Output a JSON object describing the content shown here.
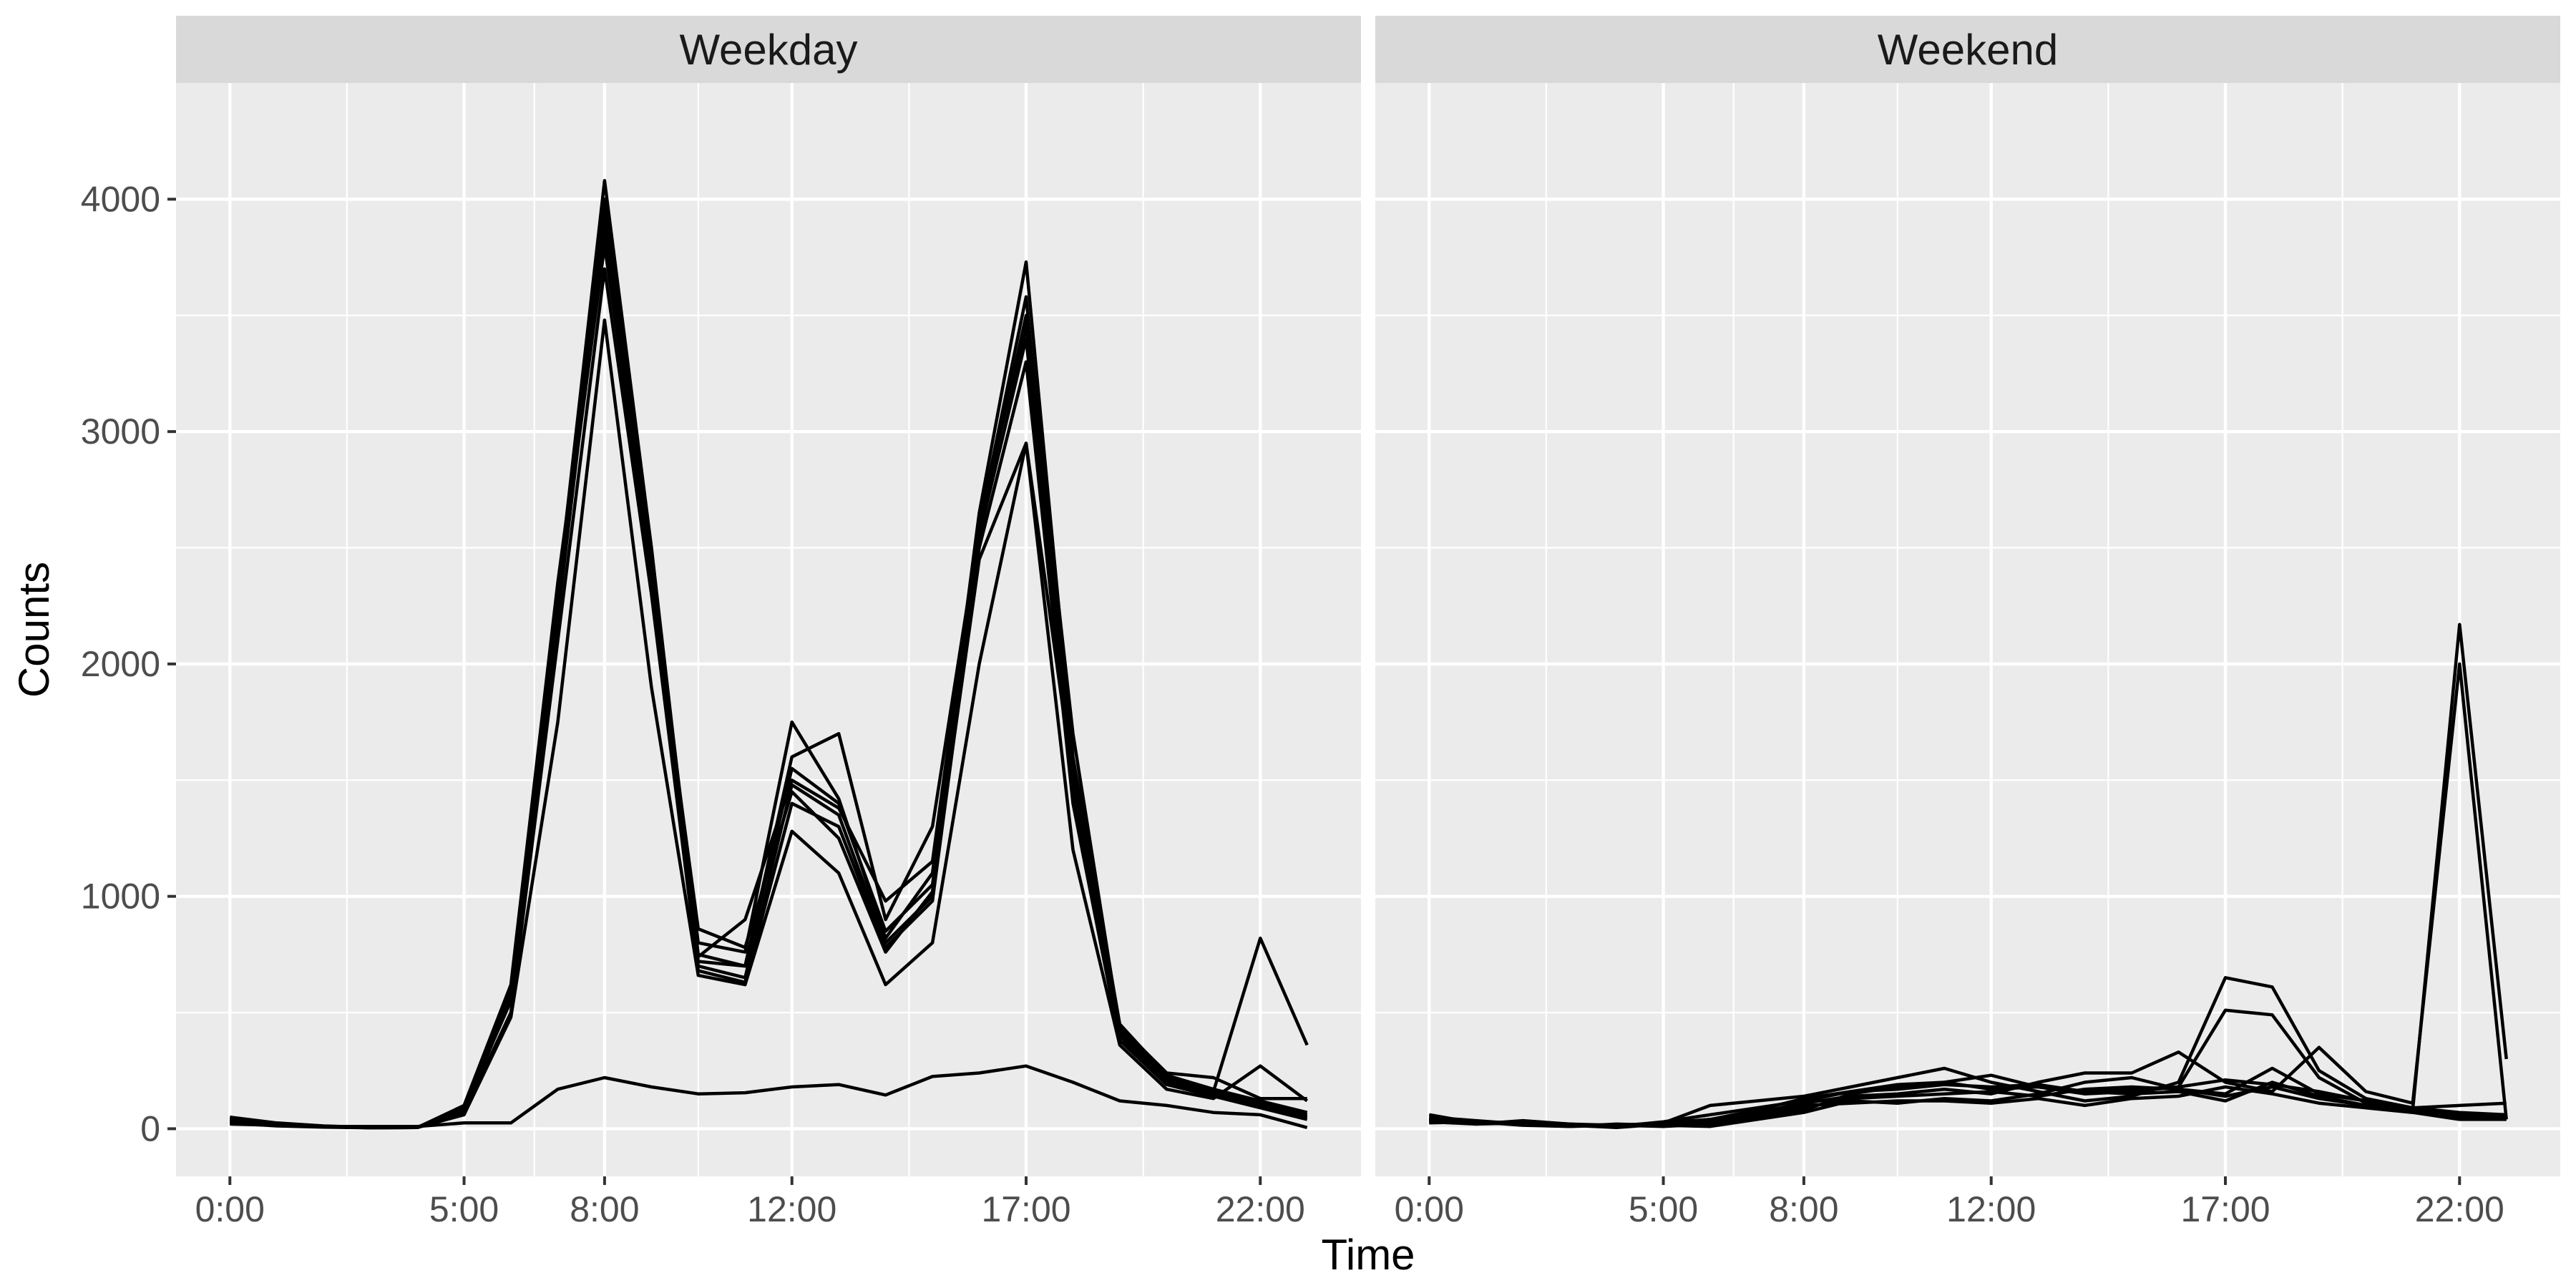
{
  "chart_data": {
    "type": "line",
    "xlabel": "Time",
    "ylabel": "Counts",
    "xlim": [
      -1.15,
      24.15
    ],
    "ylim": [
      -205,
      4500
    ],
    "x_ticks": [
      0,
      5,
      8,
      12,
      17,
      22
    ],
    "x_tick_labels": [
      "0:00",
      "5:00",
      "8:00",
      "12:00",
      "17:00",
      "22:00"
    ],
    "y_ticks": [
      0,
      1000,
      2000,
      3000,
      4000
    ],
    "y_tick_labels": [
      "0",
      "1000",
      "2000",
      "3000",
      "4000"
    ],
    "grid": true,
    "line_color": "#000000",
    "panel_background": "#ebebeb",
    "strip_background": "#d9d9d9",
    "panels": [
      {
        "label": "Weekday",
        "series": [
          {
            "x": [
              0,
              1,
              2,
              3,
              4,
              5,
              6,
              7,
              8,
              9,
              10,
              11,
              12,
              13,
              14,
              15,
              16,
              17,
              18,
              19,
              20,
              21,
              22,
              23
            ],
            "y": [
              40,
              20,
              10,
              5,
              5,
              80,
              600,
              2300,
              4080,
              2500,
              700,
              650,
              1480,
              1350,
              800,
              1000,
              2600,
              3580,
              1500,
              400,
              200,
              150,
              100,
              50
            ]
          },
          {
            "x": [
              0,
              1,
              2,
              3,
              4,
              5,
              6,
              7,
              8,
              9,
              10,
              11,
              12,
              13,
              14,
              15,
              16,
              17,
              18,
              19,
              20,
              21,
              22,
              23
            ],
            "y": [
              30,
              15,
              8,
              4,
              5,
              90,
              550,
              2200,
              3900,
              2400,
              720,
              700,
              1550,
              1400,
              850,
              1050,
              2550,
              3400,
              1450,
              420,
              210,
              160,
              110,
              60
            ]
          },
          {
            "x": [
              0,
              1,
              2,
              3,
              4,
              5,
              6,
              7,
              8,
              9,
              10,
              11,
              12,
              13,
              14,
              15,
              16,
              17,
              18,
              19,
              20,
              21,
              22,
              23
            ],
            "y": [
              50,
              25,
              12,
              6,
              5,
              70,
              500,
              2100,
              3700,
              2300,
              680,
              630,
              1400,
              1300,
              780,
              980,
              2500,
              3300,
              1400,
              380,
              190,
              140,
              90,
              40
            ]
          },
          {
            "x": [
              0,
              1,
              2,
              3,
              4,
              5,
              6,
              7,
              8,
              9,
              10,
              11,
              12,
              13,
              14,
              15,
              16,
              17,
              18,
              19,
              20,
              21,
              22,
              23
            ],
            "y": [
              35,
              18,
              9,
              5,
              5,
              100,
              620,
              2350,
              3850,
              2450,
              800,
              760,
              1750,
              1420,
              820,
              1100,
              2650,
              3730,
              1600,
              450,
              230,
              170,
              120,
              70
            ]
          },
          {
            "x": [
              0,
              1,
              2,
              3,
              4,
              5,
              6,
              7,
              8,
              9,
              10,
              11,
              12,
              13,
              14,
              15,
              16,
              17,
              18,
              19,
              20,
              21,
              22,
              23
            ],
            "y": [
              25,
              12,
              7,
              4,
              5,
              60,
              480,
              1750,
              3480,
              1900,
              660,
              620,
              1280,
              1100,
              620,
              800,
              2000,
              2950,
              1200,
              360,
              170,
              130,
              270,
              120
            ]
          },
          {
            "x": [
              0,
              1,
              2,
              3,
              4,
              5,
              6,
              7,
              8,
              9,
              10,
              11,
              12,
              13,
              14,
              15,
              16,
              17,
              18,
              19,
              20,
              21,
              22,
              23
            ],
            "y": [
              45,
              22,
              11,
              5,
              5,
              85,
              580,
              2250,
              4000,
              2500,
              750,
              700,
              1600,
              1700,
              900,
              1300,
              2580,
              3500,
              1700,
              430,
              220,
              160,
              820,
              360
            ]
          },
          {
            "x": [
              0,
              1,
              2,
              3,
              4,
              5,
              6,
              7,
              8,
              9,
              10,
              11,
              12,
              13,
              14,
              15,
              16,
              17,
              18,
              19,
              20,
              21,
              22,
              23
            ],
            "y": [
              30,
              16,
              8,
              4,
              5,
              75,
              560,
              2300,
              3950,
              2350,
              860,
              780,
              1450,
              1250,
              760,
              1020,
              2450,
              2950,
              1500,
              410,
              200,
              150,
              100,
              50
            ]
          },
          {
            "x": [
              0,
              1,
              2,
              3,
              4,
              5,
              6,
              7,
              8,
              9,
              10,
              11,
              12,
              13,
              14,
              15,
              16,
              17,
              18,
              19,
              20,
              21,
              22,
              23
            ],
            "y": [
              40,
              20,
              10,
              5,
              5,
              95,
              610,
              2280,
              3800,
              2380,
              740,
              900,
              1500,
              1380,
              980,
              1150,
              2620,
              3450,
              1550,
              440,
              240,
              220,
              130,
              130
            ]
          },
          {
            "x": [
              0,
              1,
              2,
              3,
              4,
              5,
              6,
              7,
              8,
              9,
              10,
              11,
              12,
              13,
              14,
              15,
              16,
              17,
              18,
              19,
              20,
              21,
              22,
              23
            ],
            "y": [
              20,
              15,
              10,
              10,
              10,
              25,
              25,
              170,
              220,
              180,
              150,
              155,
              180,
              190,
              145,
              225,
              240,
              270,
              200,
              120,
              100,
              70,
              60,
              5
            ]
          }
        ]
      },
      {
        "label": "Weekend",
        "series": [
          {
            "x": [
              0,
              1,
              2,
              3,
              4,
              5,
              6,
              7,
              8,
              9,
              10,
              11,
              12,
              13,
              14,
              15,
              16,
              17,
              18,
              19,
              20,
              21,
              22,
              23
            ],
            "y": [
              40,
              30,
              25,
              15,
              15,
              25,
              100,
              120,
              140,
              180,
              220,
              260,
              200,
              160,
              120,
              140,
              200,
              650,
              610,
              250,
              130,
              90,
              100,
              110
            ]
          },
          {
            "x": [
              0,
              1,
              2,
              3,
              4,
              5,
              6,
              7,
              8,
              9,
              10,
              11,
              12,
              13,
              14,
              15,
              16,
              17,
              18,
              19,
              20,
              21,
              22,
              23
            ],
            "y": [
              50,
              35,
              20,
              12,
              10,
              30,
              60,
              90,
              120,
              160,
              190,
              200,
              230,
              180,
              150,
              160,
              180,
              510,
              490,
              220,
              110,
              80,
              2170,
              300
            ]
          },
          {
            "x": [
              0,
              1,
              2,
              3,
              4,
              5,
              6,
              7,
              8,
              9,
              10,
              11,
              12,
              13,
              14,
              15,
              16,
              17,
              18,
              19,
              20,
              21,
              22,
              23
            ],
            "y": [
              30,
              20,
              35,
              20,
              15,
              20,
              40,
              70,
              110,
              140,
              150,
              170,
              150,
              200,
              240,
              240,
              330,
              200,
              160,
              350,
              160,
              110,
              2000,
              40
            ]
          },
          {
            "x": [
              0,
              1,
              2,
              3,
              4,
              5,
              6,
              7,
              8,
              9,
              10,
              11,
              12,
              13,
              14,
              15,
              16,
              17,
              18,
              19,
              20,
              21,
              22,
              23
            ],
            "y": [
              60,
              25,
              20,
              15,
              10,
              25,
              20,
              50,
              90,
              130,
              140,
              150,
              160,
              140,
              170,
              180,
              170,
              150,
              260,
              150,
              120,
              90,
              60,
              50
            ]
          },
          {
            "x": [
              0,
              1,
              2,
              3,
              4,
              5,
              6,
              7,
              8,
              9,
              10,
              11,
              12,
              13,
              14,
              15,
              16,
              17,
              18,
              19,
              20,
              21,
              22,
              23
            ],
            "y": [
              35,
              30,
              20,
              10,
              20,
              15,
              10,
              40,
              70,
              120,
              110,
              130,
              120,
              150,
              200,
              220,
              170,
              140,
              180,
              130,
              100,
              80,
              50,
              40
            ]
          },
          {
            "x": [
              0,
              1,
              2,
              3,
              4,
              5,
              6,
              7,
              8,
              9,
              10,
              11,
              12,
              13,
              14,
              15,
              16,
              17,
              18,
              19,
              20,
              21,
              22,
              23
            ],
            "y": [
              45,
              20,
              25,
              15,
              5,
              20,
              30,
              60,
              100,
              110,
              120,
              120,
              110,
              130,
              100,
              130,
              140,
              180,
              150,
              110,
              90,
              70,
              40,
              40
            ]
          },
          {
            "x": [
              0,
              1,
              2,
              3,
              4,
              5,
              6,
              7,
              8,
              9,
              10,
              11,
              12,
              13,
              14,
              15,
              16,
              17,
              18,
              19,
              20,
              21,
              22,
              23
            ],
            "y": [
              25,
              30,
              15,
              10,
              15,
              10,
              20,
              50,
              80,
              150,
              180,
              200,
              170,
              180,
              160,
              150,
              160,
              120,
              200,
              140,
              100,
              90,
              70,
              60
            ]
          },
          {
            "x": [
              0,
              1,
              2,
              3,
              4,
              5,
              6,
              7,
              8,
              9,
              10,
              11,
              12,
              13,
              14,
              15,
              16,
              17,
              18,
              19,
              20,
              21,
              22,
              23
            ],
            "y": [
              40,
              25,
              30,
              20,
              10,
              25,
              40,
              80,
              130,
              160,
              170,
              190,
              180,
              190,
              160,
              170,
              180,
              210,
              190,
              160,
              120,
              90,
              60,
              50
            ]
          }
        ]
      }
    ]
  }
}
